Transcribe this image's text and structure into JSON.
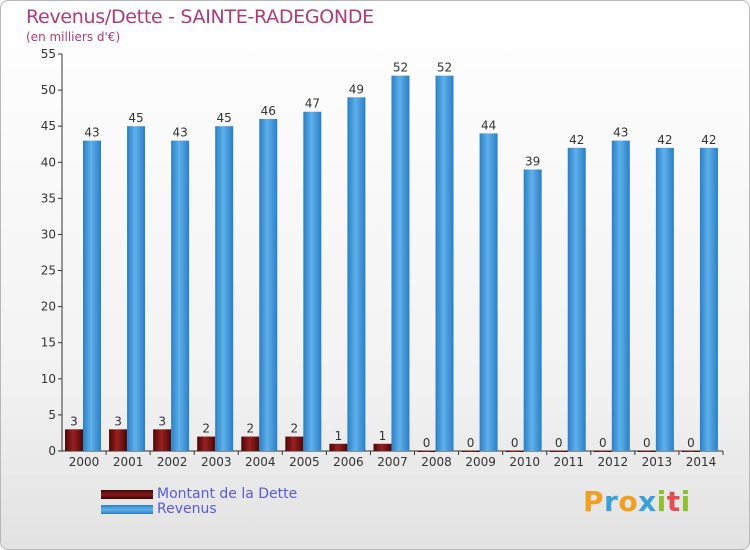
{
  "title": "Revenus/Dette - SAINTE-RADEGONDE",
  "subtitle": "(en milliers d'€)",
  "colors": {
    "title": "#b03a78",
    "dette": "#6b0d0d",
    "revenus": "#4a9fe0",
    "legend_text": "#5a5ad8"
  },
  "legend": [
    {
      "label": "Montant de la Dette",
      "color": "#6b0d0d"
    },
    {
      "label": "Revenus",
      "color": "#4a9fe0"
    }
  ],
  "logo": {
    "letters": [
      "P",
      "r",
      "o",
      "x",
      "i",
      "t",
      "i"
    ],
    "colors": [
      "#f0a020",
      "#3aa0d8",
      "#f0a020",
      "#3aa0d8",
      "#90c030",
      "#e05050",
      "#90c030"
    ]
  },
  "chart_data": {
    "type": "bar",
    "categories": [
      "2000",
      "2001",
      "2002",
      "2003",
      "2004",
      "2005",
      "2006",
      "2007",
      "2008",
      "2009",
      "2010",
      "2011",
      "2012",
      "2013",
      "2014"
    ],
    "series": [
      {
        "name": "Montant de la Dette",
        "values": [
          3,
          3,
          3,
          2,
          2,
          2,
          1,
          1,
          0,
          0,
          0,
          0,
          0,
          0,
          0
        ]
      },
      {
        "name": "Revenus",
        "values": [
          43,
          45,
          43,
          45,
          46,
          47,
          49,
          52,
          52,
          44,
          39,
          42,
          43,
          42,
          42
        ]
      }
    ],
    "yticks": [
      0,
      5,
      10,
      15,
      20,
      25,
      30,
      35,
      40,
      45,
      50,
      55
    ],
    "ylim": [
      0,
      55
    ],
    "grid": false,
    "legend_position": "bottom-left"
  }
}
